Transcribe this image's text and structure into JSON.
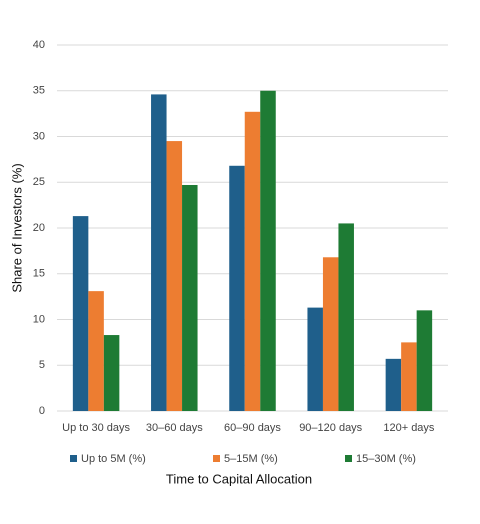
{
  "chart_data": {
    "type": "bar",
    "x_label": "Time to Capital Allocation",
    "y_label": "Share of Investors (%)",
    "categories": [
      "Up to 30 days",
      "30–60 days",
      "60–90 days",
      "90–120 days",
      "120+ days"
    ],
    "series": [
      {
        "name": "Up to 5M (%)",
        "color": "#1f5f8b",
        "values": [
          21.3,
          34.6,
          26.8,
          11.3,
          5.7
        ]
      },
      {
        "name": "5–15M (%)",
        "color": "#ed7d31",
        "values": [
          13.1,
          29.5,
          32.7,
          16.8,
          7.5
        ]
      },
      {
        "name": "15–30M (%)",
        "color": "#1e7b34",
        "values": [
          8.3,
          24.7,
          35.0,
          20.5,
          11.0
        ]
      }
    ],
    "ylim": [
      0,
      40
    ],
    "yticks": [
      0,
      5,
      10,
      15,
      20,
      25,
      30,
      35,
      40
    ],
    "grid": true,
    "legend": "bottom"
  }
}
